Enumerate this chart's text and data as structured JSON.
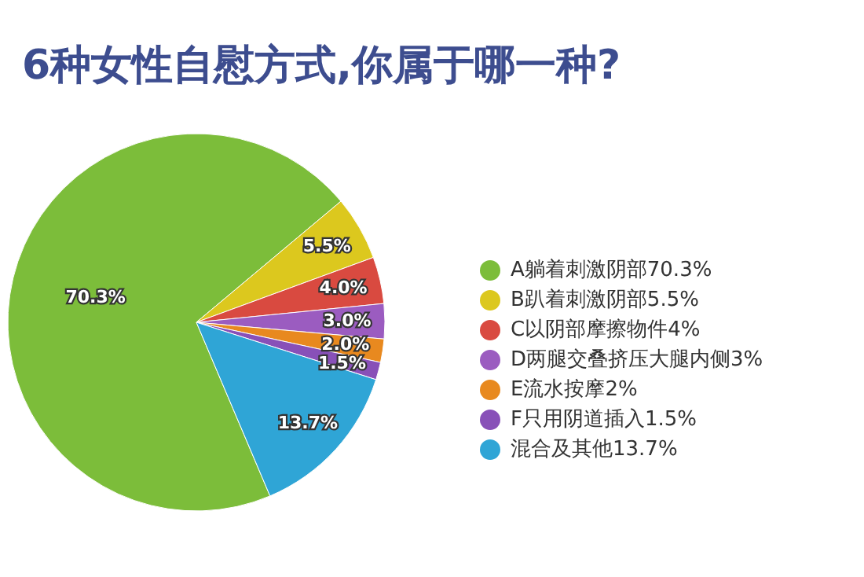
{
  "chart_data": {
    "type": "pie",
    "title": "6种女性自慰方式,你属于哪一种?",
    "categories": [
      "A躺着刺激阴部70.3%",
      "B趴着刺激阴部5.5%",
      "C以阴部摩擦物件4%",
      "D两腿交叠挤压大腿内侧3%",
      "E流水按摩2%",
      "F只用阴道插入1.5%",
      "混合及其他13.7%"
    ],
    "values": [
      70.3,
      5.5,
      4,
      3,
      2,
      1.5,
      13.7
    ],
    "value_labels": [
      "70.3%",
      "5.5%",
      "4.0%",
      "3.0%",
      "2.0%",
      "1.5%",
      "13.7%"
    ],
    "colors": [
      "#7cbd3a",
      "#dcc81e",
      "#d94a40",
      "#9b5cc0",
      "#e8891f",
      "#8850b8",
      "#2fa5d6"
    ],
    "legend": "right"
  }
}
